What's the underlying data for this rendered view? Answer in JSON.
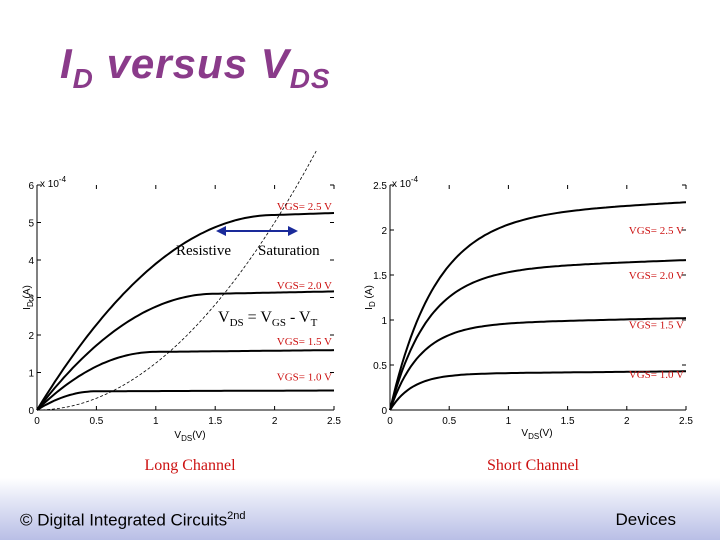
{
  "slide": {
    "title_main": "I",
    "title_sub1": "D",
    "title_mid": " versus V",
    "title_sub2": "DS"
  },
  "footer": {
    "left_text": "© Digital Integrated Circuits",
    "left_sup": "2nd",
    "right_text": "Devices"
  },
  "chart_data": [
    {
      "type": "line",
      "caption": "Long Channel",
      "xlim": [
        0,
        2.5
      ],
      "ylim": [
        0,
        6
      ],
      "y_multiplier": "x 10",
      "y_multiplier_exp": "-4",
      "x_ticks": [
        0,
        0.5,
        1,
        1.5,
        2,
        2.5
      ],
      "y_ticks": [
        0,
        1,
        2,
        3,
        4,
        5,
        6
      ],
      "x_tick_labels": [
        "0",
        "0.5",
        "1",
        "1.5",
        "2",
        "2.5"
      ],
      "y_tick_labels": [
        "0",
        "1",
        "2",
        "3",
        "4",
        "5",
        "6"
      ],
      "xlabel_main": "V",
      "xlabel_sub": "DS",
      "xlabel_unit": "(V)",
      "ylabel_main": "I",
      "ylabel_sub": "D",
      "ylabel_unit": " (A)",
      "series": [
        {
          "label": "VGS= 2.5 V",
          "vsat": 2.0,
          "isat": 5.2
        },
        {
          "label": "VGS= 2.0 V",
          "vsat": 1.5,
          "isat": 3.1
        },
        {
          "label": "VGS= 1.5 V",
          "vsat": 1.0,
          "isat": 1.55
        },
        {
          "label": "VGS= 1.0 V",
          "vsat": 0.5,
          "isat": 0.5
        }
      ],
      "boundary_curve": {
        "style": "dashed",
        "k": 1.25
      },
      "annotations": {
        "resistive": "Resistive",
        "saturation": "Saturation",
        "eq_v": "V",
        "eq_sub1": "DS",
        "eq_mid": " = V",
        "eq_sub2": "GS",
        "eq_minus": " - V",
        "eq_sub3": "T"
      }
    },
    {
      "type": "line",
      "caption": "Short Channel",
      "xlim": [
        0,
        2.5
      ],
      "ylim": [
        0,
        2.5
      ],
      "y_multiplier": "x 10",
      "y_multiplier_exp": "-4",
      "x_ticks": [
        0,
        0.5,
        1,
        1.5,
        2,
        2.5
      ],
      "y_ticks": [
        0,
        0.5,
        1,
        1.5,
        2,
        2.5
      ],
      "x_tick_labels": [
        "0",
        "0.5",
        "1",
        "1.5",
        "2",
        "2.5"
      ],
      "y_tick_labels": [
        "0",
        "0.5",
        "1",
        "1.5",
        "2",
        "2.5"
      ],
      "xlabel_main": "V",
      "xlabel_sub": "DS",
      "xlabel_unit": "(V)",
      "ylabel_main": "I",
      "ylabel_sub": "D",
      "ylabel_unit": " (A)",
      "series": [
        {
          "label": "VGS= 2.5 V",
          "isat": 2.15,
          "vknee": 0.6
        },
        {
          "label": "VGS= 2.0 V",
          "isat": 1.55,
          "vknee": 0.5
        },
        {
          "label": "VGS= 1.5 V",
          "isat": 0.95,
          "vknee": 0.4
        },
        {
          "label": "VGS= 1.0 V",
          "isat": 0.4,
          "vknee": 0.3
        }
      ]
    }
  ]
}
